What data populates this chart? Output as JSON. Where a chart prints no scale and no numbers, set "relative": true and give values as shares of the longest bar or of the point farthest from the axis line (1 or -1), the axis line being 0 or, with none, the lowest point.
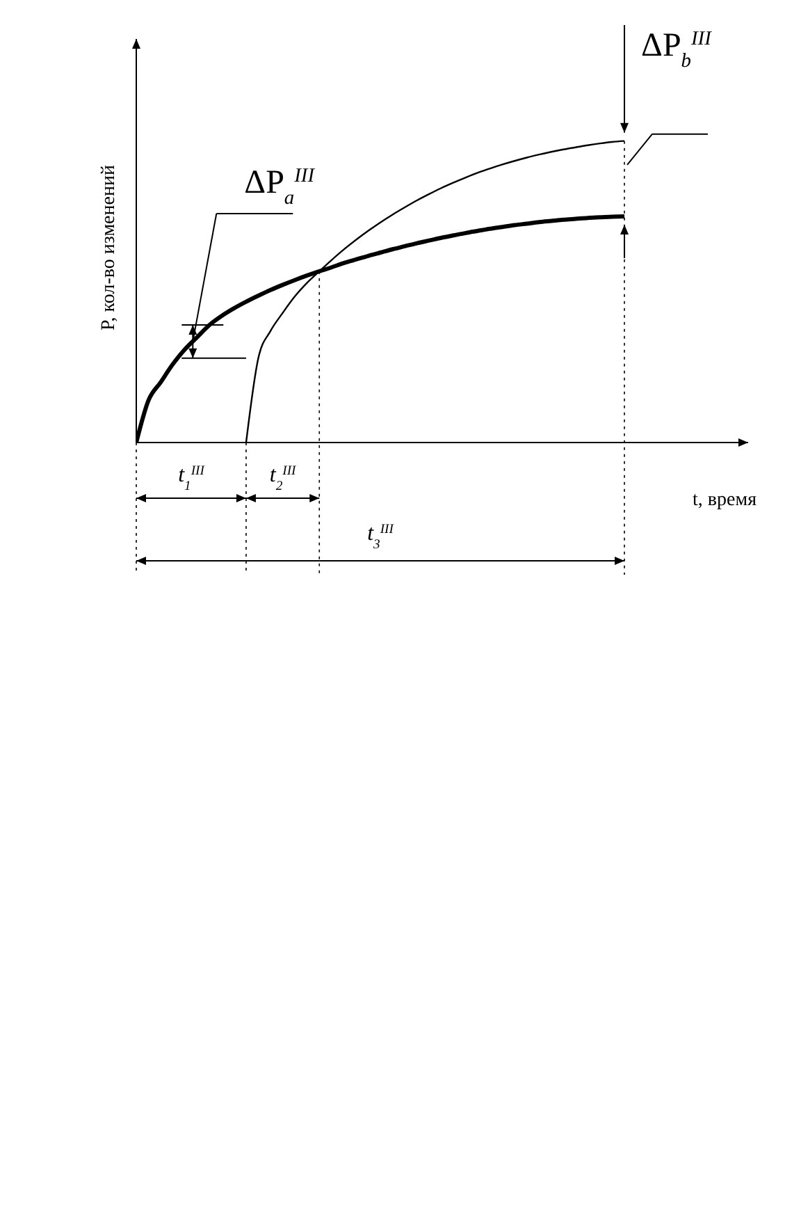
{
  "chart_data": {
    "type": "line",
    "relative": true,
    "xlabel": "t, время",
    "ylabel": "P, кол-во изменений",
    "categories": [
      null,
      null,
      null,
      null,
      null,
      null,
      null,
      null,
      null,
      null,
      null,
      null,
      null,
      null,
      null,
      null,
      null,
      null,
      null,
      null,
      null,
      null,
      null,
      null,
      null,
      null,
      null,
      null,
      null,
      null,
      null,
      null,
      null,
      null,
      null,
      null,
      null,
      null,
      null,
      null,
      null,
      null,
      null,
      null,
      null,
      null,
      null,
      null,
      null,
      null
    ],
    "series": [
      {
        "color": "#000000",
        "values": [
          0,
          0.14,
          0.2,
          0.26,
          0.31,
          0.35,
          0.39,
          0.42,
          0.445,
          0.467,
          0.487,
          0.506,
          0.523,
          0.539,
          0.554,
          0.568,
          0.581,
          0.595,
          0.607,
          0.619,
          0.63,
          0.641,
          0.651,
          0.661,
          0.67,
          0.679,
          0.687,
          0.695,
          0.702,
          0.709,
          0.715,
          0.721,
          0.726,
          0.731,
          0.735,
          0.739,
          0.742,
          0.745,
          0.747,
          0.749,
          0.75,
          null,
          null,
          null,
          null,
          null,
          null,
          null,
          null,
          null
        ]
      },
      {
        "color": "#000000",
        "values": [
          null,
          null,
          null,
          null,
          null,
          null,
          null,
          null,
          null,
          0,
          0.28,
          0.37,
          0.43,
          0.485,
          0.53,
          0.568,
          0.605,
          0.64,
          0.672,
          0.702,
          0.73,
          0.756,
          0.78,
          0.803,
          0.824,
          0.844,
          0.862,
          0.879,
          0.895,
          0.909,
          0.922,
          0.934,
          0.945,
          0.955,
          0.964,
          0.972,
          0.979,
          0.986,
          0.992,
          0.997,
          1.0,
          null,
          null,
          null,
          null,
          null,
          null,
          null,
          null,
          null
        ]
      }
    ],
    "annotations": [
      "ΔP$_{a}$$^{III}$",
      "ΔP$_{b}$$^{III}$",
      "t$_{1}$$^{III}$",
      "t$_{2}$$^{III}$",
      "t$_{3}$$^{III}$"
    ]
  }
}
